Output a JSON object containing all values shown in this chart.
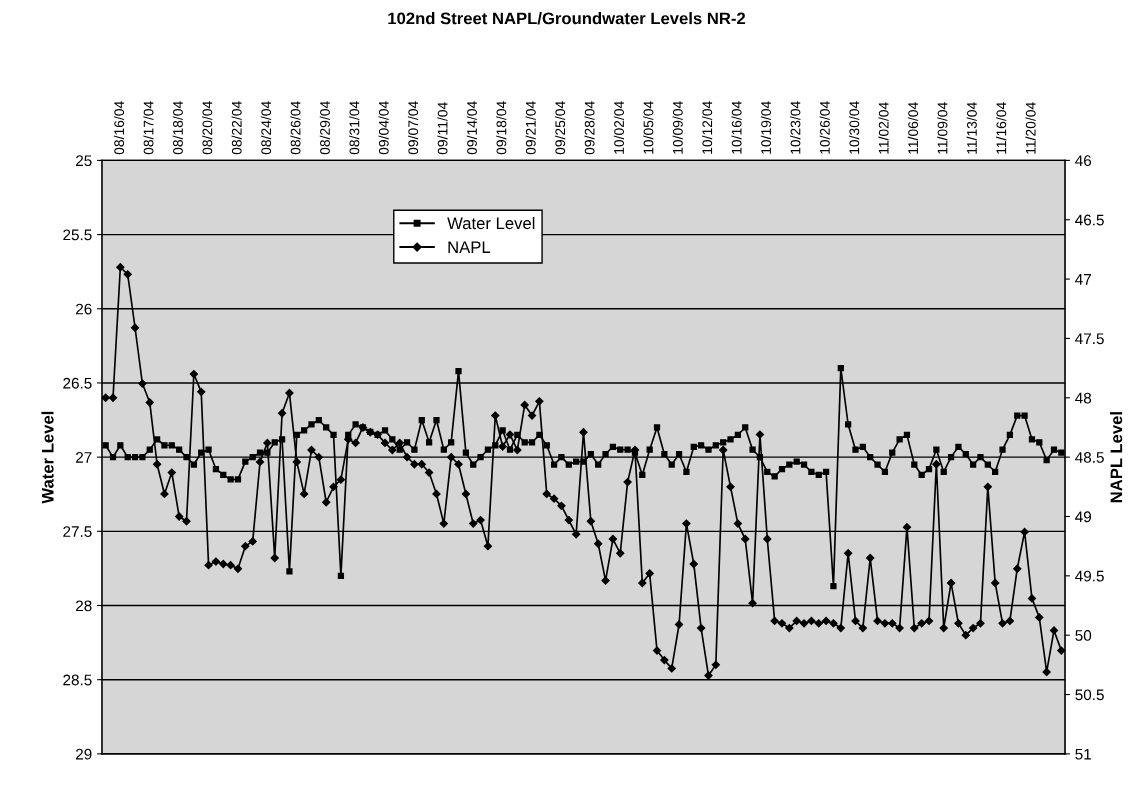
{
  "chart_data": {
    "type": "line",
    "title": "102nd Street NAPL/Groundwater Levels NR-2",
    "ylabel": "Water Level",
    "y2label": "NAPL Level",
    "categories": [
      null,
      null,
      "08/16/04",
      null,
      null,
      null,
      "08/17/04",
      null,
      null,
      null,
      "08/18/04",
      null,
      null,
      null,
      "08/20/04",
      null,
      null,
      null,
      "08/22/04",
      null,
      null,
      null,
      "08/24/04",
      null,
      null,
      null,
      "08/26/04",
      null,
      null,
      null,
      "08/29/04",
      null,
      null,
      null,
      "08/31/04",
      null,
      null,
      null,
      "09/04/04",
      null,
      null,
      null,
      "09/07/04",
      null,
      null,
      null,
      "09/11/04",
      null,
      null,
      null,
      "09/14/04",
      null,
      null,
      null,
      "09/18/04",
      null,
      null,
      null,
      "09/21/04",
      null,
      null,
      null,
      "09/25/04",
      null,
      null,
      null,
      "09/28/04",
      null,
      null,
      null,
      "10/02/04",
      null,
      null,
      null,
      "10/05/04",
      null,
      null,
      null,
      "10/09/04",
      null,
      null,
      null,
      "10/12/04",
      null,
      null,
      null,
      "10/16/04",
      null,
      null,
      null,
      "10/19/04",
      null,
      null,
      null,
      "10/23/04",
      null,
      null,
      null,
      "10/26/04",
      null,
      null,
      null,
      "10/30/04",
      null,
      null,
      null,
      "11/02/04",
      null,
      null,
      null,
      "11/06/04",
      null,
      null,
      null,
      "11/09/04",
      null,
      null,
      null,
      "11/13/04",
      null,
      null,
      null,
      "11/16/04",
      null,
      null,
      null,
      "11/20/04",
      null,
      null,
      null,
      null
    ],
    "series": [
      {
        "name": "Water Level",
        "color": "#000000",
        "marker": "square",
        "axis": "y",
        "values": [
          26.92,
          27.0,
          26.92,
          27.0,
          27.0,
          27.0,
          26.95,
          26.88,
          26.92,
          26.92,
          26.95,
          27.0,
          27.05,
          26.97,
          26.95,
          27.08,
          27.12,
          27.15,
          27.15,
          27.03,
          27.0,
          26.97,
          26.97,
          26.9,
          26.88,
          27.77,
          26.85,
          26.82,
          26.78,
          26.75,
          26.8,
          26.85,
          27.8,
          26.85,
          26.78,
          26.8,
          26.83,
          26.85,
          26.82,
          26.88,
          26.95,
          26.9,
          26.95,
          26.75,
          26.9,
          26.75,
          26.95,
          26.9,
          26.42,
          26.97,
          27.05,
          27.0,
          26.95,
          26.92,
          26.82,
          26.95,
          26.85,
          26.9,
          26.9,
          26.85,
          26.92,
          27.05,
          27.0,
          27.05,
          27.03,
          27.03,
          26.98,
          27.05,
          26.98,
          26.93,
          26.95,
          26.95,
          26.97,
          27.12,
          26.95,
          26.8,
          26.98,
          27.05,
          26.98,
          27.1,
          26.93,
          26.92,
          26.95,
          26.92,
          26.9,
          26.88,
          26.85,
          26.8,
          26.95,
          27.0,
          27.1,
          27.13,
          27.08,
          27.05,
          27.03,
          27.05,
          27.1,
          27.12,
          27.1,
          27.87,
          26.4,
          26.78,
          26.95,
          26.93,
          27.0,
          27.05,
          27.1,
          26.97,
          26.88,
          26.85,
          27.05,
          27.12,
          27.08,
          26.95,
          27.1,
          27.0,
          26.93,
          26.98,
          27.05,
          27.0,
          27.05,
          27.1,
          26.95,
          26.85,
          26.72,
          26.72,
          26.88,
          26.9,
          27.02,
          26.95,
          26.97
        ]
      },
      {
        "name": "NAPL",
        "color": "#000000",
        "marker": "diamond",
        "axis": "y2",
        "values": [
          48.0,
          48.0,
          46.9,
          46.96,
          47.41,
          47.88,
          48.04,
          48.56,
          48.81,
          48.63,
          49.0,
          49.04,
          47.8,
          47.95,
          49.41,
          49.38,
          49.4,
          49.41,
          49.44,
          49.25,
          49.21,
          48.54,
          48.38,
          49.35,
          48.13,
          47.96,
          48.54,
          48.81,
          48.44,
          48.5,
          48.88,
          48.75,
          48.69,
          48.35,
          48.38,
          48.25,
          48.29,
          48.31,
          48.38,
          48.44,
          48.38,
          48.5,
          48.56,
          48.56,
          48.63,
          48.81,
          49.06,
          48.5,
          48.56,
          48.81,
          49.06,
          49.03,
          49.25,
          48.15,
          48.41,
          48.31,
          48.44,
          48.06,
          48.15,
          48.03,
          48.81,
          48.85,
          48.91,
          49.03,
          49.15,
          48.29,
          49.04,
          49.23,
          49.54,
          49.19,
          49.31,
          48.71,
          48.44,
          49.56,
          49.48,
          50.13,
          50.21,
          50.28,
          49.91,
          49.06,
          49.4,
          49.94,
          50.34,
          50.25,
          48.44,
          48.75,
          49.06,
          49.19,
          49.73,
          48.31,
          49.19,
          49.88,
          49.9,
          49.94,
          49.88,
          49.9,
          49.88,
          49.9,
          49.88,
          49.9,
          49.94,
          49.31,
          49.88,
          49.94,
          49.35,
          49.88,
          49.9,
          49.9,
          49.94,
          49.09,
          49.94,
          49.9,
          49.88,
          48.56,
          49.94,
          49.56,
          49.9,
          50.0,
          49.94,
          49.9,
          48.75,
          49.56,
          49.9,
          49.88,
          49.44,
          49.13,
          49.69,
          49.85,
          50.31,
          49.96,
          50.13
        ]
      }
    ],
    "ylim": [
      29,
      25
    ],
    "yticks": [
      25,
      25.5,
      26,
      26.5,
      27,
      27.5,
      28,
      28.5,
      29
    ],
    "y2lim": [
      51,
      46
    ],
    "y2ticks": [
      46,
      46.5,
      47,
      47.5,
      48,
      48.5,
      49,
      49.5,
      50,
      50.5,
      51
    ],
    "grid": "y",
    "legend": "top",
    "line_style": "solid"
  }
}
